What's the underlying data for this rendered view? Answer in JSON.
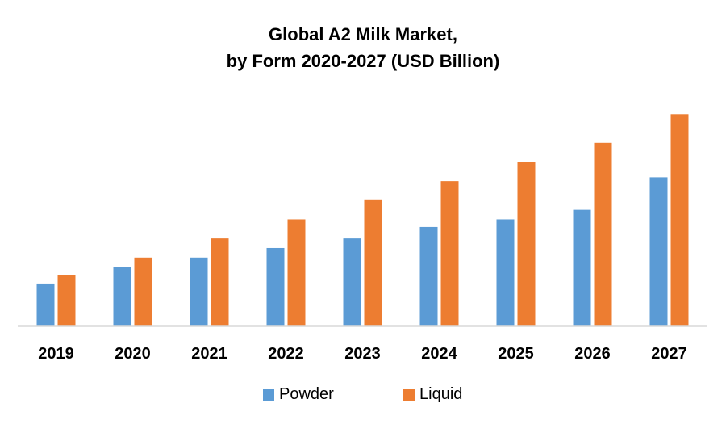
{
  "chart_data": {
    "type": "bar",
    "title_lines": [
      "Global A2 Milk Market,",
      "by Form 2020-2027 (USD Billion)"
    ],
    "categories": [
      "2019",
      "2020",
      "2021",
      "2022",
      "2023",
      "2024",
      "2025",
      "2026",
      "2027"
    ],
    "series": [
      {
        "name": "Powder",
        "color": "#5B9BD5",
        "values": [
          2.2,
          3.1,
          3.6,
          4.1,
          4.6,
          5.2,
          5.6,
          6.1,
          7.8
        ]
      },
      {
        "name": "Liquid",
        "color": "#ED7D31",
        "values": [
          2.7,
          3.6,
          4.6,
          5.6,
          6.6,
          7.6,
          8.6,
          9.6,
          11.1
        ]
      }
    ],
    "ylim": [
      0,
      12
    ],
    "legend_position": "bottom",
    "grid": false
  }
}
